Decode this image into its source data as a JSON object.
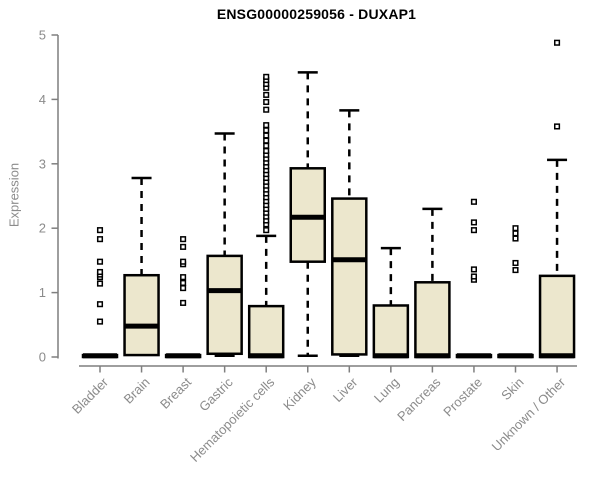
{
  "chart_data": {
    "type": "boxplot",
    "title": "ENSG00000259056 - DUXAP1",
    "ylabel": "Expression",
    "xlabel": "",
    "ylim": [
      0,
      5
    ],
    "yticks": [
      0,
      1,
      2,
      3,
      4,
      5
    ],
    "grid": false,
    "legend": false,
    "categories": [
      "Bladder",
      "Brain",
      "Breast",
      "Gastric",
      "Hematopoietic cells",
      "Kidney",
      "Liver",
      "Lung",
      "Pancreas",
      "Prostate",
      "Skin",
      "Unknown / Other"
    ],
    "series": [
      {
        "name": "Bladder",
        "whislo": 0,
        "q1": 0,
        "med": 0.02,
        "q3": 0.03,
        "whishi": 0.03,
        "outliers": [
          0.55,
          0.82,
          1.14,
          1.24,
          1.28,
          1.32,
          1.48,
          1.83,
          1.97
        ]
      },
      {
        "name": "Brain",
        "whislo": 0.02,
        "q1": 0.03,
        "med": 0.48,
        "q3": 1.27,
        "whishi": 2.78,
        "outliers": []
      },
      {
        "name": "Breast",
        "whislo": 0,
        "q1": 0,
        "med": 0.02,
        "q3": 0.03,
        "whishi": 0.03,
        "outliers": [
          0.84,
          1.07,
          1.15,
          1.24,
          1.44,
          1.48,
          1.71,
          1.83
        ]
      },
      {
        "name": "Gastric",
        "whislo": 0.02,
        "q1": 0.05,
        "med": 1.03,
        "q3": 1.57,
        "whishi": 3.47,
        "outliers": []
      },
      {
        "name": "Hematopoietic cells",
        "whislo": 0,
        "q1": 0,
        "med": 0.02,
        "q3": 0.79,
        "whishi": 1.88,
        "outliers": [
          1.97,
          2.06,
          2.12,
          2.18,
          2.24,
          2.3,
          2.36,
          2.42,
          2.48,
          2.54,
          2.6,
          2.66,
          2.72,
          2.78,
          2.84,
          2.9,
          2.96,
          3.02,
          3.08,
          3.14,
          3.2,
          3.28,
          3.36,
          3.44,
          3.52,
          3.6,
          3.84,
          3.96,
          4.07,
          4.18,
          4.24,
          4.3,
          4.35
        ]
      },
      {
        "name": "Kidney",
        "whislo": 0.02,
        "q1": 1.48,
        "med": 2.17,
        "q3": 2.93,
        "whishi": 4.42,
        "outliers": []
      },
      {
        "name": "Liver",
        "whislo": 0.02,
        "q1": 0.04,
        "med": 1.51,
        "q3": 2.46,
        "whishi": 3.83,
        "outliers": []
      },
      {
        "name": "Lung",
        "whislo": 0,
        "q1": 0,
        "med": 0.02,
        "q3": 0.8,
        "whishi": 1.69,
        "outliers": []
      },
      {
        "name": "Pancreas",
        "whislo": 0,
        "q1": 0,
        "med": 0.02,
        "q3": 1.16,
        "whishi": 2.3,
        "outliers": []
      },
      {
        "name": "Prostate",
        "whislo": 0,
        "q1": 0,
        "med": 0.02,
        "q3": 0.03,
        "whishi": 0.03,
        "outliers": [
          1.2,
          1.25,
          1.36,
          1.97,
          2.09,
          2.41
        ]
      },
      {
        "name": "Skin",
        "whislo": 0,
        "q1": 0,
        "med": 0.02,
        "q3": 0.03,
        "whishi": 0.03,
        "outliers": [
          1.35,
          1.46,
          1.84,
          1.92,
          2.0
        ]
      },
      {
        "name": "Unknown / Other",
        "whislo": 0,
        "q1": 0,
        "med": 0.02,
        "q3": 1.26,
        "whishi": 3.06,
        "outliers": [
          3.58,
          4.88
        ]
      }
    ],
    "colors": {
      "box_fill": "#ECE7CD",
      "box_stroke": "#000000",
      "median": "#000000",
      "whisker": "#000000",
      "outlier_stroke": "#000000",
      "axis_line": "#7F7F7F",
      "axis_text": "#8B8B8B",
      "title": "#000000",
      "background": "#FFFFFF"
    }
  }
}
